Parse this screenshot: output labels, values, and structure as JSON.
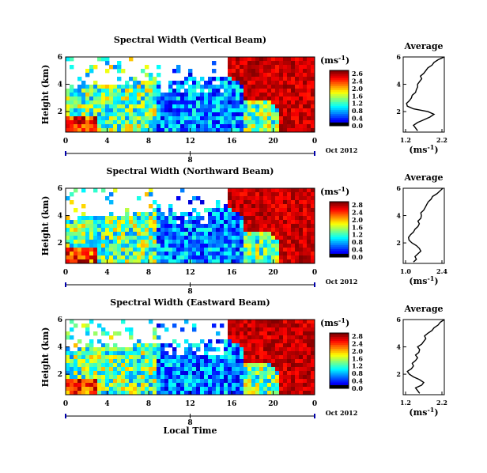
{
  "chart_data": [
    {
      "type": "heatmap",
      "title": "Spectral Width (Vertical Beam)",
      "ylabel": "Height (km)",
      "x_ticks": [
        "0",
        "4",
        "8",
        "12",
        "16",
        "20",
        "0"
      ],
      "y_ticks": [
        "6",
        "4",
        "2"
      ],
      "date_tick": "8",
      "date_label": "Oct 2012",
      "colorbar_unit": "(ms",
      "colorbar_unit_sup": "-1",
      "colorbar_unit_close": ")",
      "colorbar_ticks": [
        "2.6",
        "2.4",
        "2.0",
        "1.6",
        "1.2",
        "0.8",
        "0.4",
        "0.0"
      ],
      "avg_title": "Average",
      "avg_x_ticks": [
        "1.2",
        "2.2"
      ],
      "avg_y_ticks": [
        "6",
        "4",
        "2"
      ],
      "avg_xlabel": "(ms",
      "avg_xlabel_sup": "-1",
      "avg_xlabel_close": ")",
      "avg_xlim": [
        1.2,
        2.2
      ],
      "avg_ylim": [
        0.5,
        6
      ],
      "average_profile": {
        "height": [
          0.6,
          0.8,
          1.0,
          1.2,
          1.4,
          1.6,
          1.8,
          2.0,
          2.2,
          2.4,
          2.6,
          2.8,
          3.0,
          3.2,
          3.4,
          3.6,
          3.8,
          4.0,
          4.2,
          4.4,
          4.6,
          4.8,
          5.0,
          5.2,
          5.4,
          5.6,
          5.8,
          6.0
        ],
        "width": [
          1.55,
          1.5,
          1.45,
          1.55,
          1.7,
          1.85,
          1.95,
          1.8,
          1.45,
          1.3,
          1.28,
          1.35,
          1.4,
          1.42,
          1.5,
          1.52,
          1.55,
          1.55,
          1.6,
          1.65,
          1.62,
          1.7,
          1.75,
          1.8,
          1.9,
          1.95,
          2.05,
          2.2
        ]
      }
    },
    {
      "type": "heatmap",
      "title": "Spectral Width (Northward Beam)",
      "ylabel": "Height (km)",
      "x_ticks": [
        "0",
        "4",
        "8",
        "12",
        "16",
        "20",
        "0"
      ],
      "y_ticks": [
        "6",
        "4",
        "2"
      ],
      "date_tick": "8",
      "date_label": "Oct 2012",
      "colorbar_unit": "(ms",
      "colorbar_unit_sup": "-1",
      "colorbar_unit_close": ")",
      "colorbar_ticks": [
        "2.8",
        "2.4",
        "2.0",
        "1.6",
        "1.2",
        "0.8",
        "0.4",
        "0.0"
      ],
      "avg_title": "Average",
      "avg_x_ticks": [
        "1.0",
        "2.4"
      ],
      "avg_y_ticks": [
        "6",
        "4",
        "2"
      ],
      "avg_xlabel": "(ms",
      "avg_xlabel_sup": "-1",
      "avg_xlabel_close": ")",
      "avg_xlim": [
        1.0,
        2.4
      ],
      "avg_ylim": [
        0.5,
        6
      ],
      "average_profile": {
        "height": [
          0.6,
          0.8,
          1.0,
          1.2,
          1.4,
          1.6,
          1.8,
          2.0,
          2.2,
          2.4,
          2.6,
          2.8,
          3.0,
          3.2,
          3.4,
          3.6,
          3.8,
          4.0,
          4.2,
          4.4,
          4.6,
          4.8,
          5.0,
          5.2,
          5.4,
          5.6,
          5.8,
          6.0
        ],
        "width": [
          1.35,
          1.45,
          1.4,
          1.5,
          1.6,
          1.55,
          1.45,
          1.3,
          1.2,
          1.18,
          1.25,
          1.35,
          1.4,
          1.5,
          1.55,
          1.5,
          1.6,
          1.62,
          1.6,
          1.7,
          1.75,
          1.8,
          1.85,
          1.95,
          2.0,
          2.15,
          2.25,
          2.35
        ]
      }
    },
    {
      "type": "heatmap",
      "title": "Spectral Width (Eastward Beam)",
      "ylabel": "Height (km)",
      "x_ticks": [
        "0",
        "4",
        "8",
        "12",
        "16",
        "20",
        "0"
      ],
      "y_ticks": [
        "6",
        "4",
        "2"
      ],
      "date_tick": "8",
      "date_label": "Oct 2012",
      "colorbar_unit": "(ms",
      "colorbar_unit_sup": "-1",
      "colorbar_unit_close": ")",
      "colorbar_ticks": [
        "2.8",
        "2.4",
        "2.0",
        "1.6",
        "1.2",
        "0.8",
        "0.4",
        "0.0"
      ],
      "avg_title": "Average",
      "avg_x_ticks": [
        "1.2",
        "2.2"
      ],
      "avg_y_ticks": [
        "6",
        "4",
        "2"
      ],
      "avg_xlabel": "(ms",
      "avg_xlabel_sup": "-1",
      "avg_xlabel_close": ")",
      "avg_xlim": [
        1.2,
        2.2
      ],
      "avg_ylim": [
        0.5,
        6
      ],
      "average_profile": {
        "height": [
          0.6,
          0.8,
          1.0,
          1.2,
          1.4,
          1.6,
          1.8,
          2.0,
          2.2,
          2.4,
          2.6,
          2.8,
          3.0,
          3.2,
          3.4,
          3.6,
          3.8,
          4.0,
          4.2,
          4.4,
          4.6,
          4.8,
          5.0,
          5.2,
          5.4,
          5.6,
          5.8,
          6.0
        ],
        "width": [
          1.6,
          1.55,
          1.5,
          1.65,
          1.7,
          1.6,
          1.45,
          1.35,
          1.3,
          1.4,
          1.45,
          1.42,
          1.5,
          1.55,
          1.5,
          1.58,
          1.6,
          1.55,
          1.65,
          1.7,
          1.75,
          1.72,
          1.8,
          1.9,
          1.95,
          2.05,
          2.1,
          2.2
        ]
      }
    }
  ],
  "xlabel": "Local Time"
}
